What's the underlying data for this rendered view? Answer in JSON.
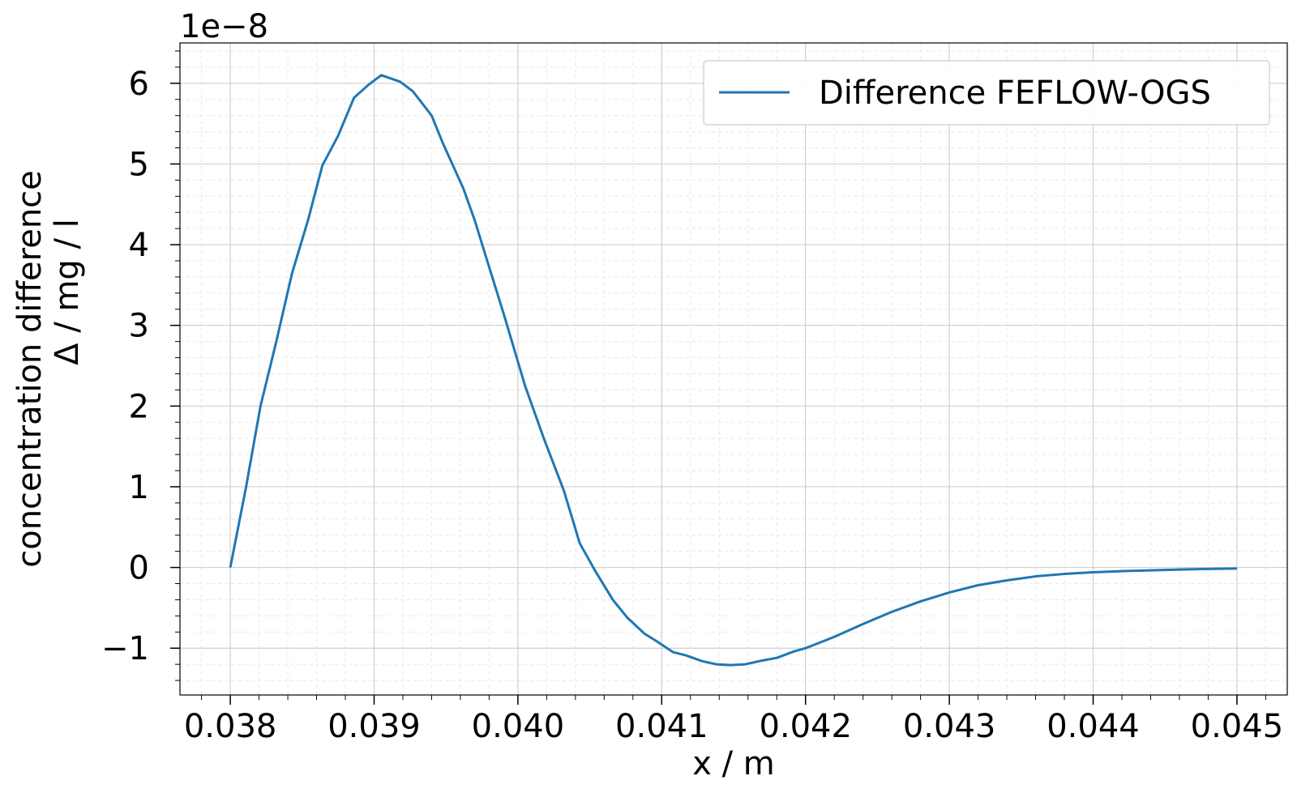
{
  "chart_data": {
    "type": "line",
    "xlabel": "x / m",
    "ylabel_line1": "concentration difference",
    "ylabel_line2": "Δ / mg / l",
    "y_offset_text": "1e−8",
    "xlim": [
      0.03765,
      0.04535
    ],
    "ylim": [
      -1.58,
      6.5
    ],
    "x_ticks": [
      0.038,
      0.039,
      0.04,
      0.041,
      0.042,
      0.043,
      0.044,
      0.045
    ],
    "x_tick_labels": [
      "0.038",
      "0.039",
      "0.040",
      "0.041",
      "0.042",
      "0.043",
      "0.044",
      "0.045"
    ],
    "y_ticks": [
      -1,
      0,
      1,
      2,
      3,
      4,
      5,
      6
    ],
    "y_tick_labels": [
      "−1",
      "0",
      "1",
      "2",
      "3",
      "4",
      "5",
      "6"
    ],
    "grid": true,
    "minor_grid": true,
    "legend_position": "top-right",
    "series": [
      {
        "name": "Difference FEFLOW-OGS",
        "color": "#1f77b4",
        "x": [
          0.038,
          0.03811,
          0.03821,
          0.03832,
          0.03843,
          0.03854,
          0.03864,
          0.03875,
          0.03886,
          0.03896,
          0.03905,
          0.03918,
          0.03927,
          0.0394,
          0.03948,
          0.03962,
          0.0397,
          0.03983,
          0.0399,
          0.04005,
          0.04018,
          0.04032,
          0.04043,
          0.04054,
          0.04066,
          0.04076,
          0.04088,
          0.04097,
          0.04108,
          0.04117,
          0.04128,
          0.04138,
          0.04148,
          0.04158,
          0.04168,
          0.0418,
          0.04192,
          0.042,
          0.0422,
          0.0424,
          0.0426,
          0.0428,
          0.043,
          0.0432,
          0.0434,
          0.0436,
          0.0438,
          0.044,
          0.0442,
          0.0444,
          0.0446,
          0.0448,
          0.045
        ],
        "y": [
          0.0,
          1.0,
          2.0,
          2.8,
          3.65,
          4.3,
          4.98,
          5.35,
          5.82,
          5.98,
          6.1,
          6.02,
          5.9,
          5.6,
          5.25,
          4.7,
          4.3,
          3.55,
          3.15,
          2.25,
          1.6,
          0.95,
          0.3,
          -0.05,
          -0.4,
          -0.62,
          -0.82,
          -0.92,
          -1.05,
          -1.09,
          -1.16,
          -1.2,
          -1.21,
          -1.2,
          -1.16,
          -1.12,
          -1.04,
          -1.0,
          -0.86,
          -0.7,
          -0.55,
          -0.42,
          -0.31,
          -0.22,
          -0.16,
          -0.11,
          -0.08,
          -0.06,
          -0.045,
          -0.035,
          -0.025,
          -0.018,
          -0.013
        ]
      }
    ]
  }
}
